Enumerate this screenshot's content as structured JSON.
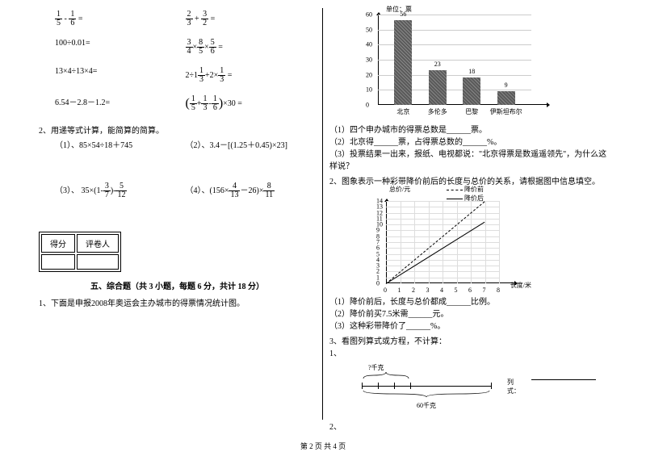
{
  "left": {
    "calc_rows": [
      {
        "a_html": "<span class='frac'><span class='n'>1</span><span class='d'>5</span></span> - <span class='frac'><span class='n'>1</span><span class='d'>6</span></span> =",
        "b_html": "<span class='frac'><span class='n'>2</span><span class='d'>3</span></span> + <span class='frac'><span class='n'>3</span><span class='d'>2</span></span> ="
      },
      {
        "a_html": "100÷0.01=",
        "b_html": "<span class='frac'><span class='n'>3</span><span class='d'>4</span></span>×<span class='frac'><span class='n'>8</span><span class='d'>5</span></span>×<span class='frac'><span class='n'>5</span><span class='d'>6</span></span> ="
      },
      {
        "a_html": "13×4÷13×4=",
        "b_html": "2÷1<span class='frac'><span class='n'>1</span><span class='d'>3</span></span>+2×<span class='frac'><span class='n'>1</span><span class='d'>3</span></span> ="
      },
      {
        "a_html": "6.54－2.8－1.2=",
        "b_html": "<span style='font-size:16px;vertical-align:middle'>(</span><span class='frac'><span class='n'>1</span><span class='d'>5</span></span>+<span class='frac'><span class='n'>1</span><span class='d'>3</span></span>-<span class='frac'><span class='n'>1</span><span class='d'>6</span></span><span style='font-size:16px;vertical-align:middle'>)</span>×30 ="
      }
    ],
    "q2_title": "2、用递等式计算，能简算的简算。",
    "q2_items": [
      {
        "a": "（1）、85×54÷18＋745",
        "b": "（2）、3.4－[(1.25＋0.45)×23]"
      },
      {
        "a_html": "（3）、 35×(1-<span class='frac'><span class='n'>3</span><span class='d'>7</span></span>)-<span class='frac'><span class='n'>5</span><span class='d'>12</span></span>",
        "b_html": "（4）、(156×<span class='frac'><span class='n'>4</span><span class='d'>13</span></span>－26)×<span class='frac'><span class='n'>8</span><span class='d'>11</span></span>"
      }
    ],
    "score_labels": {
      "score": "得分",
      "reviewer": "评卷人"
    },
    "section5_title": "五、综合题（共 3 小题，每题 6 分，共计 18 分）",
    "q1": "1、下面是申报2008年奥运会主办城市的得票情况统计图。"
  },
  "right": {
    "bar_chart": {
      "unit": "单位：票",
      "ymax": 60,
      "ytick_step": 10,
      "bars": [
        {
          "label": "北京",
          "value": 56,
          "color": "#5a5a5a",
          "hatch": true
        },
        {
          "label": "多伦多",
          "value": 23,
          "color": "#5a5a5a",
          "hatch": true
        },
        {
          "label": "巴黎",
          "value": 18,
          "color": "#5a5a5a",
          "hatch": true
        },
        {
          "label": "伊斯坦布尔",
          "value": 9,
          "color": "#5a5a5a",
          "hatch": true
        }
      ]
    },
    "bar_questions": [
      "（1）四个申办城市的得票总数是______票。",
      "（2）北京得______票，占得票总数的______%。",
      "（3）投票结果一出来，报纸、电视都说：\"北京得票是数遥遥领先\"，为什么这样说？"
    ],
    "q2_intro": "2、图象表示一种彩带降价前后的长度与总价的关系，请根据图中信息填空。",
    "line_chart": {
      "y_label": "总价/元",
      "x_label": "长度/米",
      "legend": {
        "dash": "降价前",
        "solid": "降价后"
      },
      "xmax": 8,
      "ymax": 14,
      "series": [
        {
          "name": "before",
          "dash": true,
          "points": [
            [
              0,
              0
            ],
            [
              7,
              14
            ]
          ]
        },
        {
          "name": "after",
          "dash": false,
          "points": [
            [
              0,
              0
            ],
            [
              7,
              10.5
            ]
          ]
        }
      ]
    },
    "line_questions": [
      "（1）降价前后，长度与总价都成______比例。",
      "（2）降价前买7.5米需______元。",
      "（3）这种彩带降价了______%。"
    ],
    "q3_intro": "3、看图列算式或方程，不计算：",
    "q3_sub1": "1、",
    "weight": {
      "top": "?千克",
      "bottom": "60千克",
      "eq_label": "列式："
    },
    "q3_sub2": "2、"
  },
  "footer": "第 2 页 共 4 页"
}
